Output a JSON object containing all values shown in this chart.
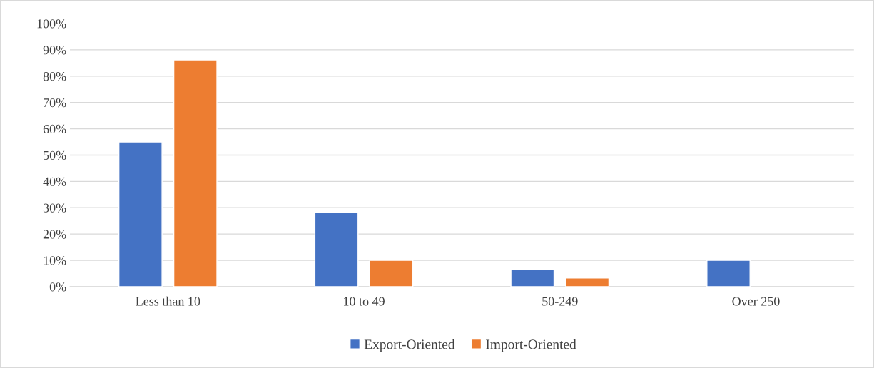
{
  "chart_data": {
    "type": "bar",
    "categories": [
      "Less than 10",
      "10 to 49",
      "50-249",
      "Over 250"
    ],
    "series": [
      {
        "name": "Export-Oriented",
        "color": "#4472c4",
        "values": [
          55,
          28.2,
          6.5,
          10
        ]
      },
      {
        "name": "Import-Oriented",
        "color": "#ed7d31",
        "values": [
          86.2,
          10,
          3.3,
          null
        ]
      }
    ],
    "ylim": [
      0,
      100
    ],
    "yticks": [
      {
        "value": 0,
        "label": "0%"
      },
      {
        "value": 10,
        "label": "10%"
      },
      {
        "value": 20,
        "label": "20%"
      },
      {
        "value": 30,
        "label": "30%"
      },
      {
        "value": 40,
        "label": "40%"
      },
      {
        "value": 50,
        "label": "50%"
      },
      {
        "value": 60,
        "label": "60%"
      },
      {
        "value": 70,
        "label": "70%"
      },
      {
        "value": 80,
        "label": "80%"
      },
      {
        "value": 90,
        "label": "90%"
      },
      {
        "value": 100,
        "label": "100%"
      }
    ],
    "grid": "y",
    "legend": "bottom"
  }
}
